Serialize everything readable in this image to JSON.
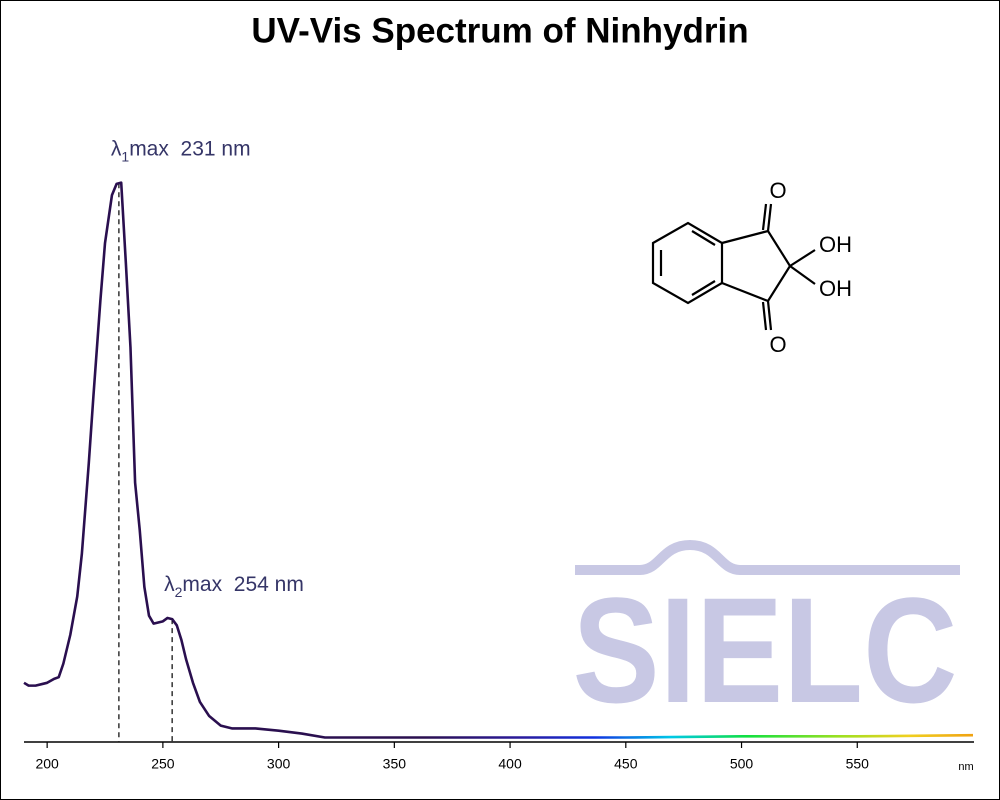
{
  "chart_data": {
    "type": "line",
    "title": "UV-Vis Spectrum of Ninhydrin",
    "xlabel": "nm",
    "x": [
      190,
      192,
      195,
      198,
      200,
      203,
      205,
      207,
      210,
      213,
      215,
      218,
      220,
      223,
      225,
      228,
      230,
      232,
      234,
      236,
      238,
      240,
      242,
      244,
      246,
      248,
      250,
      252,
      254,
      256,
      258,
      260,
      263,
      266,
      270,
      275,
      280,
      290,
      300,
      310,
      320,
      350,
      400,
      450,
      500,
      550,
      600
    ],
    "values": [
      0.105,
      0.1,
      0.1,
      0.103,
      0.105,
      0.112,
      0.115,
      0.139,
      0.19,
      0.258,
      0.334,
      0.495,
      0.614,
      0.783,
      0.885,
      0.97,
      0.99,
      0.992,
      0.85,
      0.7,
      0.46,
      0.376,
      0.275,
      0.224,
      0.21,
      0.212,
      0.214,
      0.22,
      0.218,
      0.207,
      0.181,
      0.147,
      0.105,
      0.071,
      0.046,
      0.029,
      0.024,
      0.024,
      0.02,
      0.015,
      0.008,
      0.008,
      0.008,
      0.008,
      0.01,
      0.01,
      0.012
    ],
    "color": "#2a0f4f",
    "xlim": [
      190,
      600
    ],
    "ylim": [
      0,
      1.05
    ],
    "xticks": [
      200,
      250,
      300,
      350,
      400,
      450,
      500,
      550
    ],
    "annotations": [
      {
        "x": 231,
        "prefix": "λ",
        "subscript": "1",
        "text": "max  231 nm"
      },
      {
        "x": 254,
        "prefix": "λ",
        "subscript": "2",
        "text": "max  254 nm"
      }
    ]
  },
  "structure": {
    "labels": [
      "O",
      "OH",
      "OH",
      "O"
    ]
  },
  "watermark": "SIELC"
}
